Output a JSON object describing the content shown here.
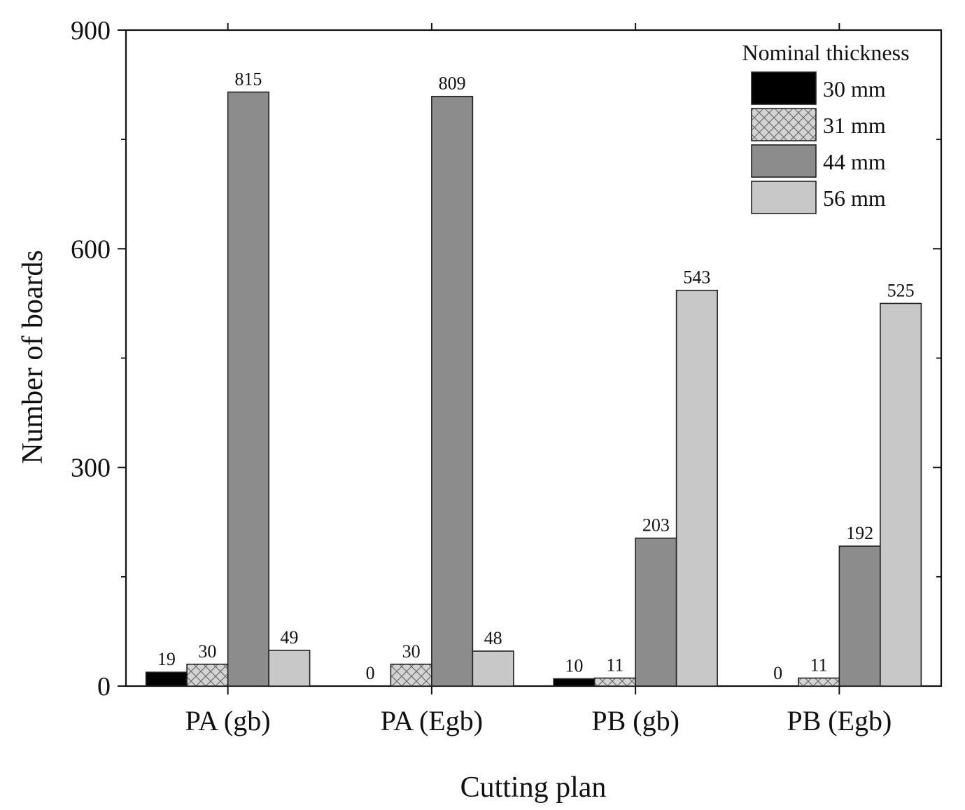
{
  "chart_data": {
    "type": "bar",
    "title": "",
    "xlabel": "Cutting plan",
    "ylabel": "Number of boards",
    "categories": [
      "PA (gb)",
      "PA (Egb)",
      "PB (gb)",
      "PB (Egb)"
    ],
    "ylim": [
      0,
      900
    ],
    "yticks": [
      0,
      300,
      600,
      900
    ],
    "legend_title": "Nominal thickness",
    "legend_position": "top-right",
    "series": [
      {
        "name": "30 mm",
        "values": [
          19,
          0,
          10,
          0
        ],
        "color": "#000000",
        "pattern": "solid"
      },
      {
        "name": "31 mm",
        "values": [
          30,
          30,
          11,
          11
        ],
        "color": "#d0d0d0",
        "pattern": "crosshatch"
      },
      {
        "name": "44 mm",
        "values": [
          815,
          809,
          203,
          192
        ],
        "color": "#8c8c8c",
        "pattern": "solid"
      },
      {
        "name": "56 mm",
        "values": [
          49,
          48,
          543,
          525
        ],
        "color": "#c8c8c8",
        "pattern": "solid"
      }
    ]
  }
}
